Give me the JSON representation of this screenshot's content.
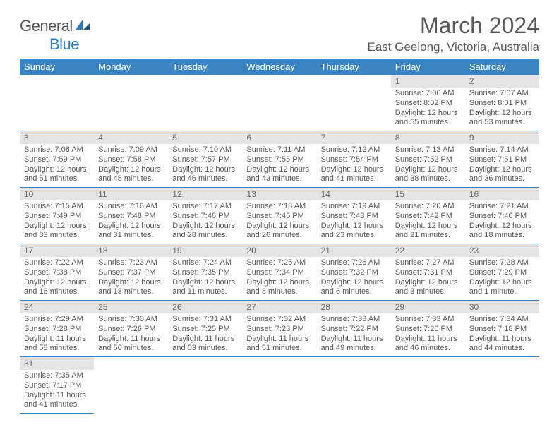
{
  "logo": {
    "text1": "General",
    "text2": "Blue"
  },
  "title": "March 2024",
  "location": "East Geelong, Victoria, Australia",
  "dayHeaders": [
    "Sunday",
    "Monday",
    "Tuesday",
    "Wednesday",
    "Thursday",
    "Friday",
    "Saturday"
  ],
  "colors": {
    "headerBg": "#3b84c4",
    "headerText": "#ffffff",
    "dayNumBg": "#e4e4e4",
    "border": "#3b84c4",
    "textGray": "#5a5a5a",
    "logoBlue": "#2b7bbf"
  },
  "weeks": [
    [
      null,
      null,
      null,
      null,
      null,
      {
        "n": "1",
        "sr": "7:06 AM",
        "ss": "8:02 PM",
        "dl": "12 hours and 55 minutes."
      },
      {
        "n": "2",
        "sr": "7:07 AM",
        "ss": "8:01 PM",
        "dl": "12 hours and 53 minutes."
      }
    ],
    [
      {
        "n": "3",
        "sr": "7:08 AM",
        "ss": "7:59 PM",
        "dl": "12 hours and 51 minutes."
      },
      {
        "n": "4",
        "sr": "7:09 AM",
        "ss": "7:58 PM",
        "dl": "12 hours and 48 minutes."
      },
      {
        "n": "5",
        "sr": "7:10 AM",
        "ss": "7:57 PM",
        "dl": "12 hours and 46 minutes."
      },
      {
        "n": "6",
        "sr": "7:11 AM",
        "ss": "7:55 PM",
        "dl": "12 hours and 43 minutes."
      },
      {
        "n": "7",
        "sr": "7:12 AM",
        "ss": "7:54 PM",
        "dl": "12 hours and 41 minutes."
      },
      {
        "n": "8",
        "sr": "7:13 AM",
        "ss": "7:52 PM",
        "dl": "12 hours and 38 minutes."
      },
      {
        "n": "9",
        "sr": "7:14 AM",
        "ss": "7:51 PM",
        "dl": "12 hours and 36 minutes."
      }
    ],
    [
      {
        "n": "10",
        "sr": "7:15 AM",
        "ss": "7:49 PM",
        "dl": "12 hours and 33 minutes."
      },
      {
        "n": "11",
        "sr": "7:16 AM",
        "ss": "7:48 PM",
        "dl": "12 hours and 31 minutes."
      },
      {
        "n": "12",
        "sr": "7:17 AM",
        "ss": "7:46 PM",
        "dl": "12 hours and 28 minutes."
      },
      {
        "n": "13",
        "sr": "7:18 AM",
        "ss": "7:45 PM",
        "dl": "12 hours and 26 minutes."
      },
      {
        "n": "14",
        "sr": "7:19 AM",
        "ss": "7:43 PM",
        "dl": "12 hours and 23 minutes."
      },
      {
        "n": "15",
        "sr": "7:20 AM",
        "ss": "7:42 PM",
        "dl": "12 hours and 21 minutes."
      },
      {
        "n": "16",
        "sr": "7:21 AM",
        "ss": "7:40 PM",
        "dl": "12 hours and 18 minutes."
      }
    ],
    [
      {
        "n": "17",
        "sr": "7:22 AM",
        "ss": "7:38 PM",
        "dl": "12 hours and 16 minutes."
      },
      {
        "n": "18",
        "sr": "7:23 AM",
        "ss": "7:37 PM",
        "dl": "12 hours and 13 minutes."
      },
      {
        "n": "19",
        "sr": "7:24 AM",
        "ss": "7:35 PM",
        "dl": "12 hours and 11 minutes."
      },
      {
        "n": "20",
        "sr": "7:25 AM",
        "ss": "7:34 PM",
        "dl": "12 hours and 8 minutes."
      },
      {
        "n": "21",
        "sr": "7:26 AM",
        "ss": "7:32 PM",
        "dl": "12 hours and 6 minutes."
      },
      {
        "n": "22",
        "sr": "7:27 AM",
        "ss": "7:31 PM",
        "dl": "12 hours and 3 minutes."
      },
      {
        "n": "23",
        "sr": "7:28 AM",
        "ss": "7:29 PM",
        "dl": "12 hours and 1 minute."
      }
    ],
    [
      {
        "n": "24",
        "sr": "7:29 AM",
        "ss": "7:28 PM",
        "dl": "11 hours and 58 minutes."
      },
      {
        "n": "25",
        "sr": "7:30 AM",
        "ss": "7:26 PM",
        "dl": "11 hours and 56 minutes."
      },
      {
        "n": "26",
        "sr": "7:31 AM",
        "ss": "7:25 PM",
        "dl": "11 hours and 53 minutes."
      },
      {
        "n": "27",
        "sr": "7:32 AM",
        "ss": "7:23 PM",
        "dl": "11 hours and 51 minutes."
      },
      {
        "n": "28",
        "sr": "7:33 AM",
        "ss": "7:22 PM",
        "dl": "11 hours and 49 minutes."
      },
      {
        "n": "29",
        "sr": "7:33 AM",
        "ss": "7:20 PM",
        "dl": "11 hours and 46 minutes."
      },
      {
        "n": "30",
        "sr": "7:34 AM",
        "ss": "7:18 PM",
        "dl": "11 hours and 44 minutes."
      }
    ],
    [
      {
        "n": "31",
        "sr": "7:35 AM",
        "ss": "7:17 PM",
        "dl": "11 hours and 41 minutes."
      },
      null,
      null,
      null,
      null,
      null,
      null
    ]
  ],
  "labels": {
    "sunrise": "Sunrise:",
    "sunset": "Sunset:",
    "daylight": "Daylight:"
  }
}
